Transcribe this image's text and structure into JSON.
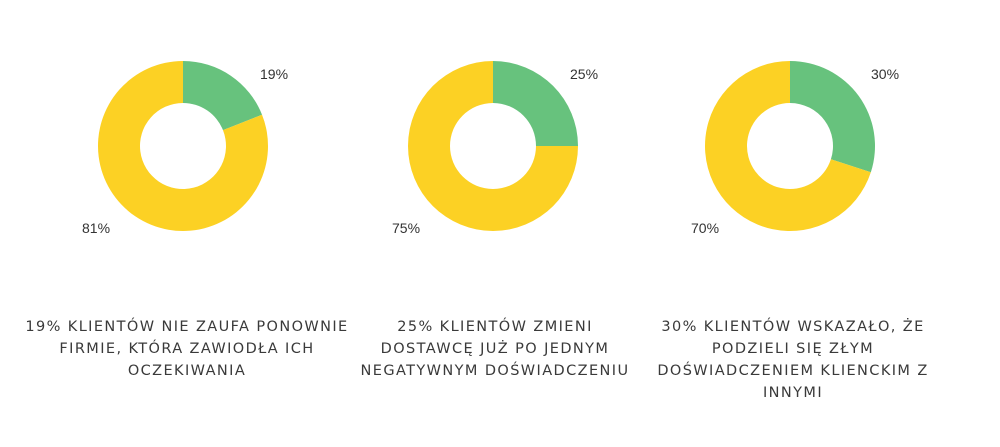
{
  "colors": {
    "primary": "#67c27d",
    "secondary": "#fcd124"
  },
  "chart_data": [
    {
      "type": "pie",
      "donut": true,
      "categories": [
        "",
        ""
      ],
      "values": [
        19,
        81
      ],
      "labels": [
        "19%",
        "81%"
      ],
      "caption": "19%  klientów nie zaufa ponownie firmie, która zawiodła ich oczekiwania"
    },
    {
      "type": "pie",
      "donut": true,
      "categories": [
        "",
        ""
      ],
      "values": [
        25,
        75
      ],
      "labels": [
        "25%",
        "75%"
      ],
      "caption": "25%  klientów zmieni dostawcę już po jednym negatywnym doświadczeniu"
    },
    {
      "type": "pie",
      "donut": true,
      "categories": [
        "",
        ""
      ],
      "values": [
        30,
        70
      ],
      "labels": [
        "30%",
        "70%"
      ],
      "caption": "30%  klientów wskazało, że podzieli się złym doświadczeniem klienckim z innymi"
    }
  ]
}
